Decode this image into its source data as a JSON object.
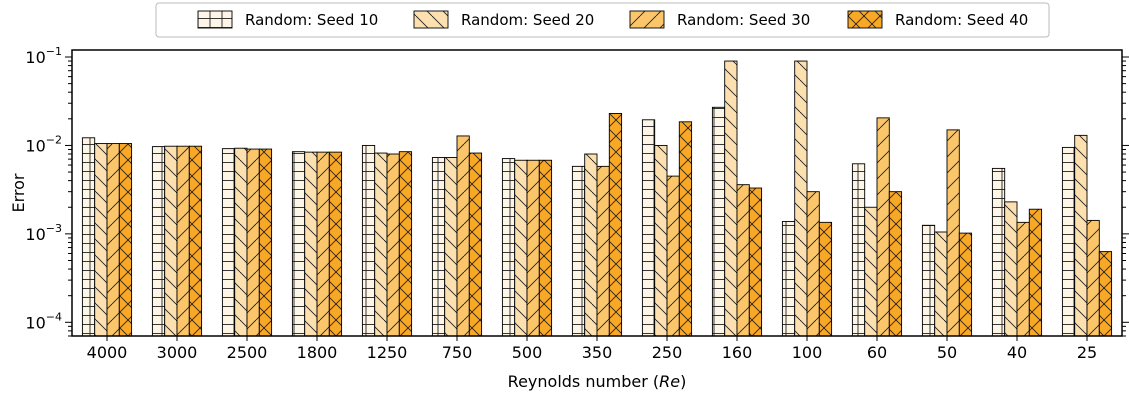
{
  "chart_data": {
    "type": "bar",
    "xlabel": "Reynolds number (",
    "xlabel_italic": "Re",
    "xlabel_close": ")",
    "ylabel": "Error",
    "yscale": "log",
    "ylim": [
      7e-05,
      0.12
    ],
    "yticks": [
      {
        "value": 0.1,
        "base": "10",
        "exp": "−1"
      },
      {
        "value": 0.01,
        "base": "10",
        "exp": "−2"
      },
      {
        "value": 0.001,
        "base": "10",
        "exp": "−3"
      },
      {
        "value": 0.0001,
        "base": "10",
        "exp": "−4"
      }
    ],
    "legend_position": "top-center",
    "categories": [
      "4000",
      "3000",
      "2500",
      "1800",
      "1250",
      "750",
      "500",
      "350",
      "250",
      "160",
      "100",
      "60",
      "50",
      "40",
      "25"
    ],
    "series": [
      {
        "name": "Random: Seed 10",
        "color": "#fdf5e6",
        "hatch": "grid",
        "values": [
          0.0122,
          0.0097,
          0.0092,
          0.0085,
          0.01,
          0.0073,
          0.0071,
          0.0058,
          0.0195,
          0.027,
          0.00138,
          0.0062,
          0.00125,
          0.0055,
          0.0095
        ]
      },
      {
        "name": "Random: Seed 20",
        "color": "#fde0b0",
        "hatch": "backslash",
        "values": [
          0.0105,
          0.0098,
          0.0093,
          0.0084,
          0.0082,
          0.0073,
          0.0068,
          0.008,
          0.01,
          0.09,
          0.09,
          0.002,
          0.00105,
          0.0023,
          0.013
        ]
      },
      {
        "name": "Random: Seed 30",
        "color": "#fbc56a",
        "hatch": "slash",
        "values": [
          0.0105,
          0.0098,
          0.0091,
          0.0084,
          0.008,
          0.0128,
          0.0068,
          0.0058,
          0.0045,
          0.0036,
          0.003,
          0.0205,
          0.015,
          0.00135,
          0.00142
        ]
      },
      {
        "name": "Random: Seed 40",
        "color": "#f9a825",
        "hatch": "cross",
        "values": [
          0.0105,
          0.0098,
          0.0091,
          0.0084,
          0.0085,
          0.0082,
          0.0068,
          0.023,
          0.0185,
          0.0033,
          0.00135,
          0.003,
          0.00102,
          0.0019,
          0.00063
        ]
      }
    ]
  }
}
